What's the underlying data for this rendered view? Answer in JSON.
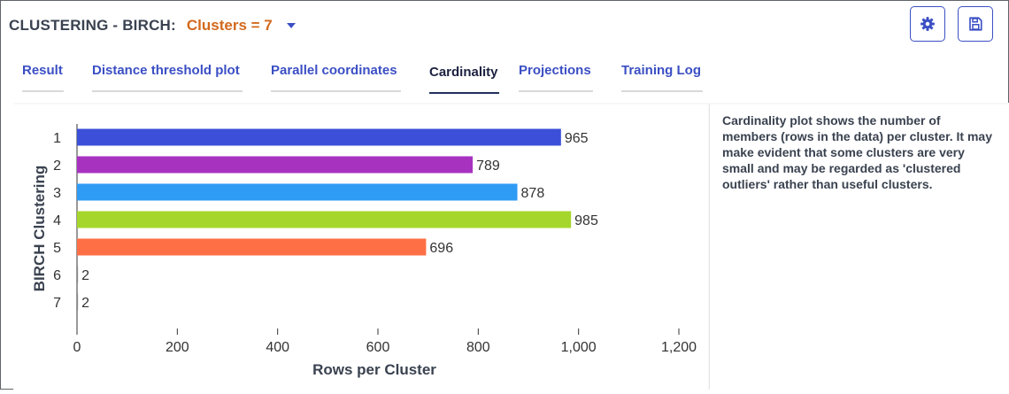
{
  "header": {
    "title": "CLUSTERING - BIRCH:",
    "clusters_label": "Clusters = 7"
  },
  "toolbar": {
    "settings_icon": "gear-icon",
    "save_icon": "save-icon"
  },
  "tabs": [
    {
      "label": "Result",
      "active": false
    },
    {
      "label": "Distance threshold plot",
      "active": false
    },
    {
      "label": "Parallel coordinates",
      "active": false
    },
    {
      "label": "Cardinality",
      "active": true
    },
    {
      "label": "Projections",
      "active": false
    },
    {
      "label": "Training Log",
      "active": false
    }
  ],
  "description": "Cardinality plot shows the number of members (rows in the data) per cluster. It may make evident that some clusters are very small and may be regarded as 'clustered outliers' rather than useful clusters.",
  "chart_data": {
    "type": "bar",
    "orientation": "horizontal",
    "title": "",
    "categories": [
      "1",
      "2",
      "3",
      "4",
      "5",
      "6",
      "7"
    ],
    "values": [
      965,
      789,
      878,
      985,
      696,
      2,
      2
    ],
    "value_labels": [
      "965",
      "789",
      "878",
      "985",
      "696",
      "2",
      "2"
    ],
    "colors": [
      "#3b4fd8",
      "#a832c0",
      "#2e9bf5",
      "#a5d62b",
      "#ff6f45",
      "#888888",
      "#888888"
    ],
    "xlabel": "Rows per Cluster",
    "ylabel": "BIRCH Clustering",
    "xlim": [
      0,
      1200
    ],
    "x_ticks": [
      0,
      200,
      400,
      600,
      800,
      1000,
      1200
    ],
    "x_tick_labels": [
      "0",
      "200",
      "400",
      "600",
      "800",
      "1,000",
      "1,200"
    ],
    "grid": false,
    "legend": "none"
  }
}
